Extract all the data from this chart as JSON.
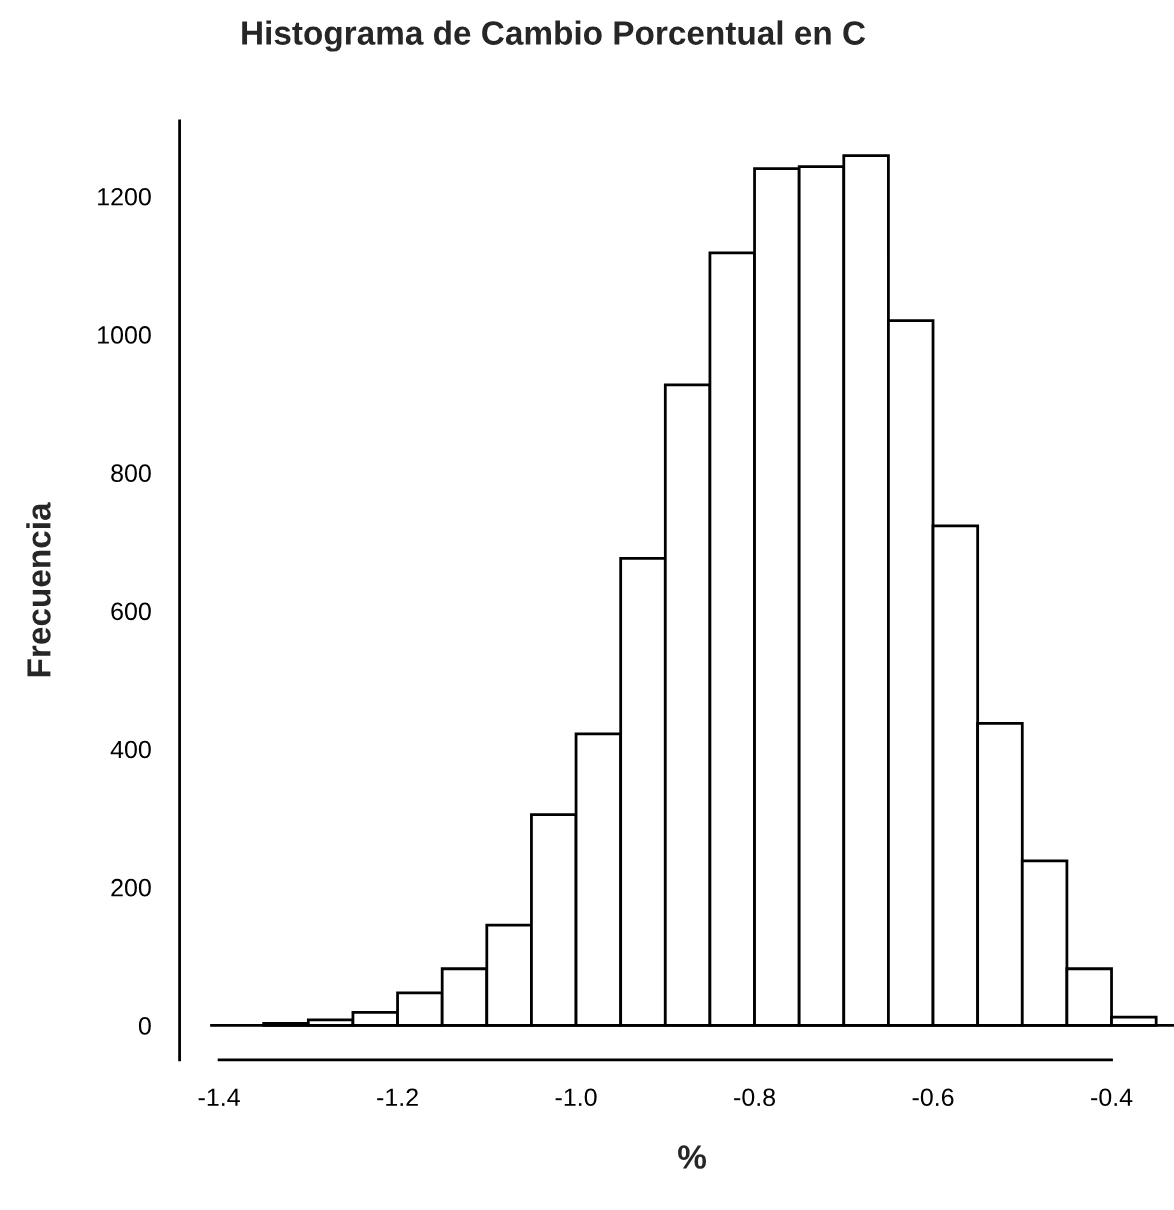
{
  "chart_data": {
    "type": "histogram",
    "title": "Histograma de Cambio Porcentual en C",
    "xlabel": "%",
    "ylabel": "Frecuencia",
    "bins": [
      -1.35,
      -1.3,
      -1.25,
      -1.2,
      -1.15,
      -1.1,
      -1.05,
      -1.0,
      -0.95,
      -0.9,
      -0.85,
      -0.8,
      -0.75,
      -0.7,
      -0.65,
      -0.6,
      -0.55,
      -0.5,
      -0.45,
      -0.4,
      -0.35
    ],
    "values": [
      3,
      8,
      19,
      47,
      82,
      145,
      305,
      422,
      676,
      927,
      1118,
      1240,
      1243,
      1259,
      1020,
      723,
      437,
      238,
      82,
      12
    ],
    "color": "#ffffff",
    "xlim": [
      -1.41,
      -0.33
    ],
    "ylim": [
      -50,
      1309
    ],
    "xticks": [
      {
        "value": -1.4,
        "label": "-1.4"
      },
      {
        "value": -1.2,
        "label": "-1.2"
      },
      {
        "value": -1.0,
        "label": "-1.0"
      },
      {
        "value": -0.8,
        "label": "-0.8"
      },
      {
        "value": -0.6,
        "label": "-0.6"
      },
      {
        "value": -0.4,
        "label": "-0.4"
      }
    ],
    "yticks": [
      0,
      200,
      400,
      600,
      800,
      1000,
      1200
    ],
    "ref_lines": [
      {
        "axis": "y",
        "value": 0,
        "color": "#000000"
      }
    ],
    "grid": false,
    "legend": false
  }
}
